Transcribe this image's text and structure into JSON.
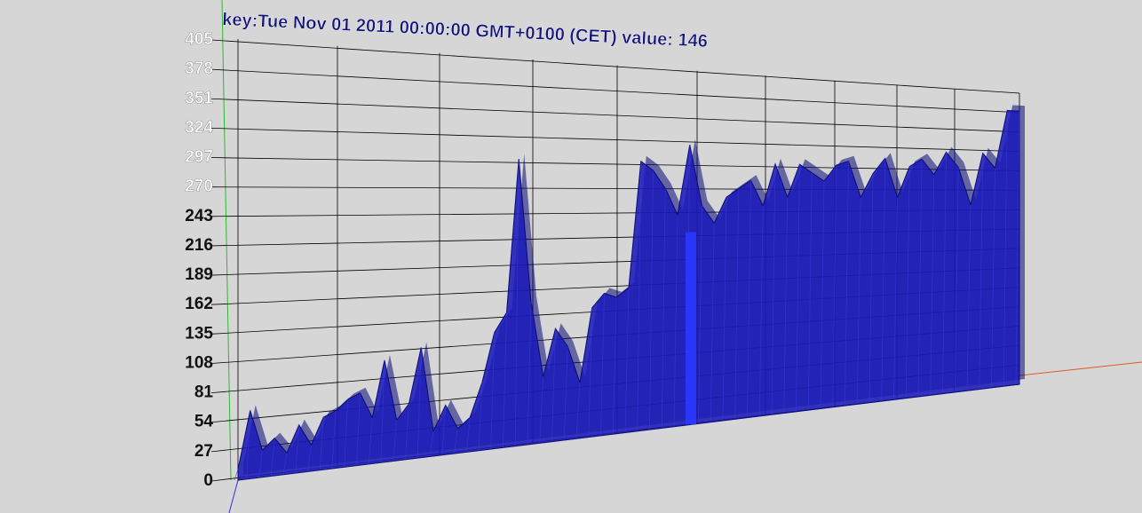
{
  "tooltip": {
    "text": "key:Tue Nov 01 2011 00:00:00 GMT+0100 (CET) value: 146"
  },
  "colors": {
    "background": "#d6d6d6",
    "series_fill": "#1a1ab8",
    "series_edge": "#0a0a78",
    "highlight": "#2a38ff",
    "grid": "#000000",
    "y_axis": "#2db82d",
    "x_axis": "#e05a20",
    "z_axis": "#3030e0"
  },
  "chart_data": {
    "type": "area",
    "projection": "3d-perspective",
    "grid": true,
    "ylim": [
      0,
      405
    ],
    "y_ticks": [
      "0",
      "27",
      "54",
      "81",
      "108",
      "135",
      "162",
      "189",
      "216",
      "243",
      "270",
      "297",
      "324",
      "351",
      "378",
      "405"
    ],
    "highlight": {
      "value": 146
    },
    "series": [
      {
        "values": [
          10,
          63,
          25,
          35,
          20,
          45,
          25,
          50,
          55,
          65,
          70,
          45,
          100,
          40,
          55,
          110,
          25,
          50,
          25,
          35,
          70,
          120,
          140,
          300,
          150,
          70,
          120,
          100,
          60,
          140,
          155,
          150,
          160,
          300,
          290,
          270,
          240,
          320,
          250,
          230,
          260,
          270,
          280,
          250,
          300,
          260,
          300,
          290,
          280,
          300,
          305,
          260,
          290,
          310,
          260,
          300,
          310,
          290,
          320,
          300,
          250,
          320,
          300,
          380,
          380
        ]
      }
    ]
  }
}
